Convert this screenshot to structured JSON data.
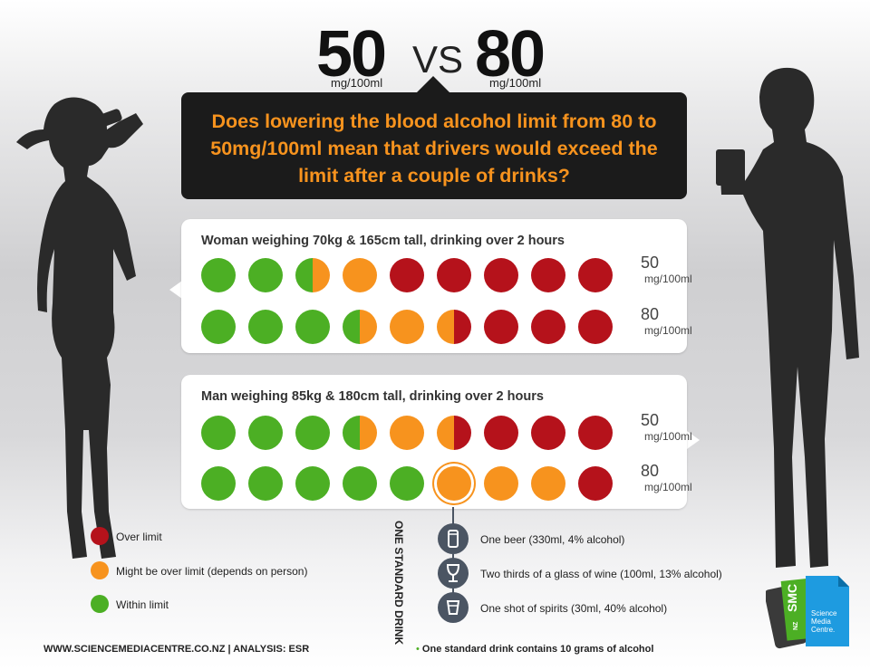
{
  "header": {
    "left_number": "50",
    "vs": "VS",
    "right_number": "80",
    "left_unit": "mg/100ml",
    "right_unit": "mg/100ml"
  },
  "question": "Does lowering the blood alcohol limit from 80 to 50mg/100ml mean that drivers would exceed the limit after a couple of drinks?",
  "colors": {
    "over": "#b5121b",
    "maybe": "#f7931e",
    "within": "#4caf24"
  },
  "panels": [
    {
      "title": "Woman weighing 70kg & 165cm tall, drinking over 2 hours",
      "rows": [
        {
          "limit": "50",
          "unit": "mg/100ml",
          "dots": [
            "within",
            "within",
            "within-maybe",
            "maybe",
            "over",
            "over",
            "over",
            "over",
            "over"
          ]
        },
        {
          "limit": "80",
          "unit": "mg/100ml",
          "dots": [
            "within",
            "within",
            "within",
            "within-maybe",
            "maybe",
            "maybe-over",
            "over",
            "over",
            "over"
          ]
        }
      ]
    },
    {
      "title": "Man weighing 85kg & 180cm tall, drinking over 2 hours",
      "rows": [
        {
          "limit": "50",
          "unit": "mg/100ml",
          "dots": [
            "within",
            "within",
            "within",
            "within-maybe",
            "maybe",
            "maybe-over",
            "over",
            "over",
            "over"
          ]
        },
        {
          "limit": "80",
          "unit": "mg/100ml",
          "dots": [
            "within",
            "within",
            "within",
            "within",
            "within",
            "maybe-ring",
            "maybe",
            "maybe",
            "over"
          ]
        }
      ]
    }
  ],
  "legend": [
    {
      "key": "over",
      "label": "Over limit"
    },
    {
      "key": "maybe",
      "label": "Might be over limit (depends on person)"
    },
    {
      "key": "within",
      "label": "Within limit"
    }
  ],
  "standard_drink": {
    "heading": "ONE STANDARD DRINK",
    "items": [
      {
        "icon": "beer-can-icon",
        "label": "One beer (330ml, 4% alcohol)"
      },
      {
        "icon": "wine-glass-icon",
        "label": "Two thirds of a glass of wine (100ml, 13% alcohol)"
      },
      {
        "icon": "shot-glass-icon",
        "label": "One shot of spirits (30ml, 40% alcohol)"
      }
    ],
    "note": "One standard drink contains 10 grams of alcohol"
  },
  "footer": {
    "credit": "WWW.SCIENCEMEDIACENTRE.CO.NZ | ANALYSIS: ESR"
  },
  "logo": {
    "text_top": "SMC",
    "text_nz": "NZ",
    "name": "Science Media Centre."
  }
}
